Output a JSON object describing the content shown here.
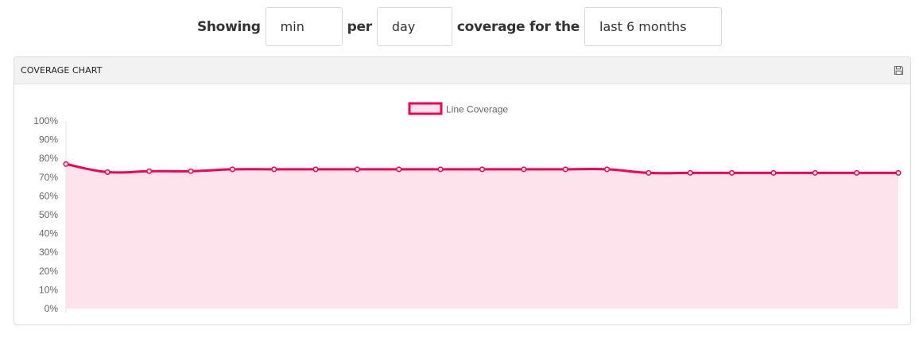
{
  "controls": {
    "showing_label": "Showing",
    "aggregate_value": "min",
    "per_label": "per",
    "unit_value": "day",
    "coverage_label": "coverage for the",
    "range_value": "last 6 months"
  },
  "panel": {
    "title": "COVERAGE CHART",
    "save_icon": "floppy-disk-icon"
  },
  "colors": {
    "line": "#f50057",
    "fill": "#fde4ec"
  },
  "chart_data": {
    "type": "area",
    "legend": {
      "position": "top-center",
      "label": "Line Coverage"
    },
    "series": [
      {
        "name": "Line Coverage",
        "values": [
          77,
          72.7,
          73.2,
          73.2,
          74.2,
          74.2,
          74.2,
          74.2,
          74.2,
          74.2,
          74.2,
          74.2,
          74.2,
          74.2,
          72.3,
          72.3,
          72.3,
          72.3,
          72.3,
          72.3,
          72.3
        ]
      }
    ],
    "ylim": [
      0,
      100
    ],
    "y_ticks": [
      "0%",
      "10%",
      "20%",
      "30%",
      "40%",
      "50%",
      "60%",
      "70%",
      "80%",
      "90%",
      "100%"
    ],
    "grid": false
  }
}
